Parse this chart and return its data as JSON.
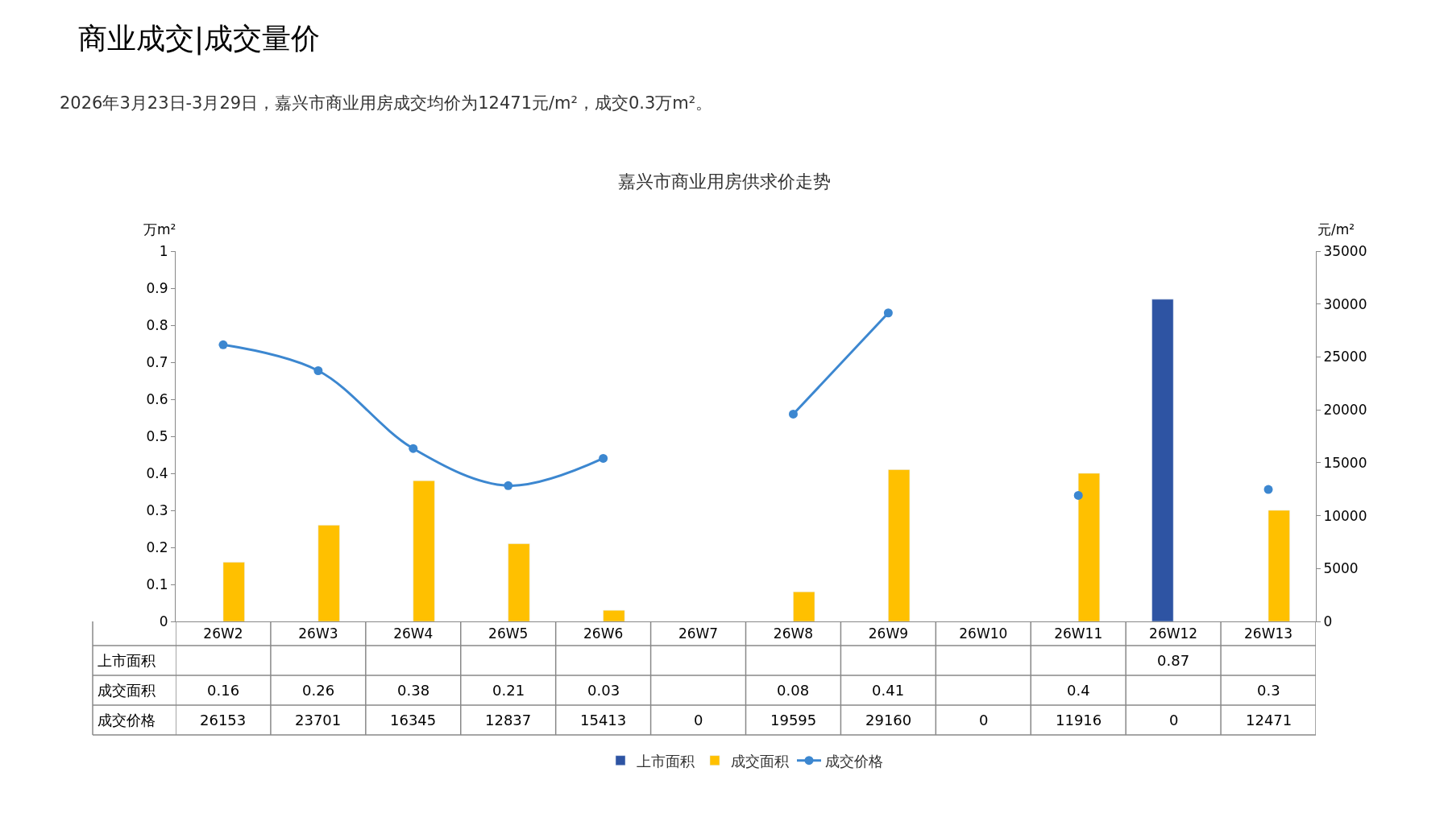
{
  "chart_data": {
    "type": "bar",
    "title": "嘉兴市商业用房供求价走势",
    "annotations": [
      "商业成交|成交量价",
      "2026年3月23日-3月29日，嘉兴市商业用房成交均价为12471元/m²，成交0.3万m²。"
    ],
    "ylabel": "万m²",
    "y2label": "元/m²",
    "categories": [
      "26W2",
      "26W3",
      "26W4",
      "26W5",
      "26W6",
      "26W7",
      "26W8",
      "26W9",
      "26W10",
      "26W11",
      "26W12",
      "26W13"
    ],
    "series": [
      {
        "name": "上市面积",
        "color": "#2e54a3",
        "values": [
          null,
          null,
          null,
          null,
          null,
          null,
          null,
          null,
          null,
          null,
          0.87,
          null
        ],
        "value_labels": [
          null,
          null,
          null,
          null,
          null,
          null,
          null,
          null,
          null,
          null,
          "0.87",
          null
        ]
      },
      {
        "name": "成交面积",
        "color": "#ffc000",
        "values": [
          0.16,
          0.26,
          0.38,
          0.21,
          0.03,
          null,
          0.08,
          0.41,
          null,
          0.4,
          null,
          0.3
        ],
        "value_labels": [
          "0.16",
          "0.26",
          "0.38",
          "0.21",
          "0.03",
          null,
          "0.08",
          "0.41",
          null,
          "0.4",
          null,
          "0.3"
        ]
      },
      {
        "name": "成交价格",
        "type": "line",
        "axis": "y2",
        "color": "#3c87d0",
        "values": [
          26153,
          23701,
          16345,
          12837,
          15413,
          null,
          19595,
          29160,
          null,
          11916,
          null,
          12471
        ],
        "value_labels": [
          "26153",
          "23701",
          "16345",
          "12837",
          "15413",
          "0",
          "19595",
          "29160",
          "0",
          "11916",
          "0",
          "12471"
        ]
      }
    ],
    "ylim": [
      0,
      1
    ],
    "yticks": [
      0,
      0.1,
      0.2,
      0.3,
      0.4,
      0.5,
      0.6,
      0.7,
      0.8,
      0.9,
      1
    ],
    "y2lim": [
      0,
      35000
    ],
    "y2ticks": [
      0,
      5000,
      10000,
      15000,
      20000,
      25000,
      30000,
      35000
    ],
    "legend": "bottom",
    "marker": "circle",
    "line_style": "solid"
  }
}
